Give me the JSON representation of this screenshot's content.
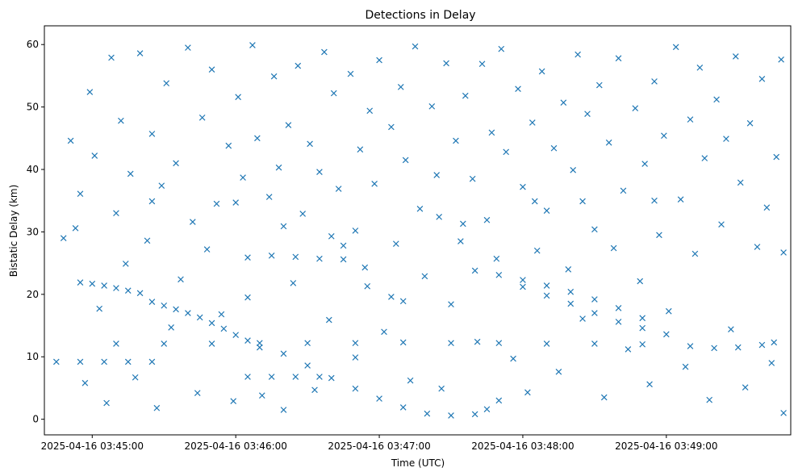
{
  "chart_data": {
    "type": "scatter",
    "title": "Detections in Delay",
    "xlabel": "Time (UTC)",
    "ylabel": "Bistatic Delay (km)",
    "x_unit": "UTC time",
    "xlim": [
      "2025-04-16 03:44:40",
      "2025-04-16 03:49:52"
    ],
    "ylim": [
      -2.5,
      63
    ],
    "x_ticks": [
      "2025-04-16 03:45:00",
      "2025-04-16 03:46:00",
      "2025-04-16 03:47:00",
      "2025-04-16 03:48:00",
      "2025-04-16 03:49:00"
    ],
    "y_ticks": [
      0,
      10,
      20,
      30,
      40,
      50,
      60
    ],
    "marker": "x",
    "color": "#1f77b4",
    "grid": false,
    "legend": "none",
    "series": [
      {
        "values": [
          [
            "03:44:55",
            21.9
          ],
          [
            "03:45:00",
            21.7
          ],
          [
            "03:45:05",
            21.4
          ],
          [
            "03:45:10",
            21.0
          ],
          [
            "03:45:15",
            20.6
          ],
          [
            "03:45:20",
            20.2
          ],
          [
            "03:45:25",
            18.8
          ],
          [
            "03:45:30",
            18.2
          ],
          [
            "03:45:35",
            17.6
          ],
          [
            "03:45:40",
            17.0
          ],
          [
            "03:45:45",
            16.3
          ],
          [
            "03:45:50",
            15.4
          ],
          [
            "03:45:55",
            14.5
          ],
          [
            "03:46:00",
            13.5
          ],
          [
            "03:46:05",
            12.6
          ],
          [
            "03:46:10",
            11.5
          ],
          [
            "03:45:10",
            12.1
          ],
          [
            "03:45:30",
            12.1
          ],
          [
            "03:45:50",
            12.1
          ],
          [
            "03:46:10",
            12.2
          ],
          [
            "03:46:30",
            12.2
          ],
          [
            "03:46:50",
            12.2
          ],
          [
            "03:47:10",
            12.3
          ],
          [
            "03:47:30",
            12.2
          ],
          [
            "03:47:50",
            12.2
          ],
          [
            "03:48:10",
            12.1
          ],
          [
            "03:48:30",
            12.1
          ],
          [
            "03:48:50",
            12.0
          ],
          [
            "03:49:10",
            11.7
          ],
          [
            "03:49:20",
            11.4
          ],
          [
            "03:44:45",
            9.2
          ],
          [
            "03:44:55",
            9.2
          ],
          [
            "03:45:05",
            9.2
          ],
          [
            "03:45:15",
            9.2
          ],
          [
            "03:45:25",
            9.2
          ],
          [
            "03:46:05",
            25.9
          ],
          [
            "03:46:15",
            26.2
          ],
          [
            "03:46:25",
            26.0
          ],
          [
            "03:46:35",
            25.7
          ],
          [
            "03:46:45",
            25.6
          ],
          [
            "03:46:05",
            6.8
          ],
          [
            "03:46:15",
            6.8
          ],
          [
            "03:46:25",
            6.8
          ],
          [
            "03:46:35",
            6.8
          ],
          [
            "03:46:20",
            10.5
          ],
          [
            "03:46:30",
            8.6
          ],
          [
            "03:46:40",
            6.6
          ],
          [
            "03:46:50",
            4.9
          ],
          [
            "03:47:00",
            3.3
          ],
          [
            "03:47:10",
            1.9
          ],
          [
            "03:47:20",
            0.9
          ],
          [
            "03:47:30",
            0.6
          ],
          [
            "03:47:40",
            0.8
          ],
          [
            "03:47:45",
            1.6
          ],
          [
            "03:47:50",
            3.0
          ],
          [
            "03:46:40",
            29.3
          ],
          [
            "03:46:50",
            30.2
          ],
          [
            "03:46:55",
            21.3
          ],
          [
            "03:47:05",
            19.6
          ],
          [
            "03:47:10",
            18.9
          ],
          [
            "03:47:25",
            32.4
          ],
          [
            "03:47:35",
            31.3
          ],
          [
            "03:47:40",
            23.8
          ],
          [
            "03:47:50",
            23.1
          ],
          [
            "03:48:00",
            22.3
          ],
          [
            "03:48:10",
            21.4
          ],
          [
            "03:48:20",
            20.4
          ],
          [
            "03:48:30",
            19.2
          ],
          [
            "03:48:40",
            17.8
          ],
          [
            "03:48:50",
            16.2
          ],
          [
            "03:48:00",
            21.2
          ],
          [
            "03:48:10",
            19.8
          ],
          [
            "03:48:20",
            18.5
          ],
          [
            "03:48:30",
            17.0
          ],
          [
            "03:48:40",
            15.6
          ],
          [
            "03:48:50",
            14.6
          ],
          [
            "03:49:00",
            13.6
          ],
          [
            "03:49:30",
            11.5
          ],
          [
            "03:49:40",
            11.9
          ],
          [
            "03:49:45",
            12.3
          ],
          [
            "03:48:05",
            34.9
          ],
          [
            "03:48:25",
            34.9
          ],
          [
            "03:48:55",
            35.0
          ],
          [
            "03:45:25",
            34.9
          ],
          [
            "03:46:00",
            34.7
          ],
          [
            "03:46:20",
            30.9
          ],
          [
            "03:44:48",
            29.0
          ],
          [
            "03:44:51",
            44.6
          ],
          [
            "03:44:53",
            30.6
          ],
          [
            "03:44:55",
            36.1
          ],
          [
            "03:44:57",
            5.8
          ],
          [
            "03:44:59",
            52.4
          ],
          [
            "03:45:01",
            42.2
          ],
          [
            "03:45:03",
            17.7
          ],
          [
            "03:45:06",
            2.6
          ],
          [
            "03:45:08",
            57.9
          ],
          [
            "03:45:10",
            33.0
          ],
          [
            "03:45:12",
            47.8
          ],
          [
            "03:45:14",
            24.9
          ],
          [
            "03:45:16",
            39.3
          ],
          [
            "03:45:18",
            6.7
          ],
          [
            "03:45:20",
            58.6
          ],
          [
            "03:45:23",
            28.6
          ],
          [
            "03:45:25",
            45.7
          ],
          [
            "03:45:27",
            1.8
          ],
          [
            "03:45:29",
            37.4
          ],
          [
            "03:45:31",
            53.8
          ],
          [
            "03:45:33",
            14.7
          ],
          [
            "03:45:35",
            41.0
          ],
          [
            "03:45:37",
            22.4
          ],
          [
            "03:45:40",
            59.5
          ],
          [
            "03:45:42",
            31.6
          ],
          [
            "03:45:44",
            4.2
          ],
          [
            "03:45:46",
            48.3
          ],
          [
            "03:45:48",
            27.2
          ],
          [
            "03:45:50",
            56.0
          ],
          [
            "03:45:52",
            34.5
          ],
          [
            "03:45:54",
            16.8
          ],
          [
            "03:45:57",
            43.8
          ],
          [
            "03:45:59",
            2.9
          ],
          [
            "03:46:01",
            51.6
          ],
          [
            "03:46:03",
            38.7
          ],
          [
            "03:46:05",
            19.5
          ],
          [
            "03:46:07",
            59.9
          ],
          [
            "03:46:09",
            45.0
          ],
          [
            "03:46:11",
            3.8
          ],
          [
            "03:46:14",
            35.6
          ],
          [
            "03:46:16",
            54.9
          ],
          [
            "03:46:18",
            40.3
          ],
          [
            "03:46:20",
            1.5
          ],
          [
            "03:46:22",
            47.1
          ],
          [
            "03:46:24",
            21.8
          ],
          [
            "03:46:26",
            56.6
          ],
          [
            "03:46:28",
            32.9
          ],
          [
            "03:46:31",
            44.1
          ],
          [
            "03:46:33",
            4.7
          ],
          [
            "03:46:35",
            39.6
          ],
          [
            "03:46:37",
            58.8
          ],
          [
            "03:46:39",
            15.9
          ],
          [
            "03:46:41",
            52.2
          ],
          [
            "03:46:43",
            36.9
          ],
          [
            "03:46:45",
            27.8
          ],
          [
            "03:46:48",
            55.3
          ],
          [
            "03:46:50",
            9.9
          ],
          [
            "03:46:52",
            43.2
          ],
          [
            "03:46:54",
            24.3
          ],
          [
            "03:46:56",
            49.4
          ],
          [
            "03:46:58",
            37.7
          ],
          [
            "03:47:00",
            57.5
          ],
          [
            "03:47:02",
            14.0
          ],
          [
            "03:47:05",
            46.8
          ],
          [
            "03:47:07",
            28.1
          ],
          [
            "03:47:09",
            53.2
          ],
          [
            "03:47:11",
            41.5
          ],
          [
            "03:47:13",
            6.2
          ],
          [
            "03:47:15",
            59.7
          ],
          [
            "03:47:17",
            33.7
          ],
          [
            "03:47:19",
            22.9
          ],
          [
            "03:47:22",
            50.1
          ],
          [
            "03:47:24",
            39.1
          ],
          [
            "03:47:26",
            4.9
          ],
          [
            "03:47:28",
            57.0
          ],
          [
            "03:47:30",
            18.4
          ],
          [
            "03:47:32",
            44.6
          ],
          [
            "03:47:34",
            28.5
          ],
          [
            "03:47:36",
            51.8
          ],
          [
            "03:47:39",
            38.5
          ],
          [
            "03:47:41",
            12.4
          ],
          [
            "03:47:43",
            56.9
          ],
          [
            "03:47:45",
            31.9
          ],
          [
            "03:47:47",
            45.9
          ],
          [
            "03:47:49",
            25.7
          ],
          [
            "03:47:51",
            59.3
          ],
          [
            "03:47:53",
            42.8
          ],
          [
            "03:47:56",
            9.7
          ],
          [
            "03:47:58",
            52.9
          ],
          [
            "03:48:00",
            37.2
          ],
          [
            "03:48:02",
            4.3
          ],
          [
            "03:48:04",
            47.5
          ],
          [
            "03:48:06",
            27.0
          ],
          [
            "03:48:08",
            55.7
          ],
          [
            "03:48:10",
            33.4
          ],
          [
            "03:48:13",
            43.4
          ],
          [
            "03:48:15",
            7.6
          ],
          [
            "03:48:17",
            50.7
          ],
          [
            "03:48:19",
            24.0
          ],
          [
            "03:48:21",
            39.9
          ],
          [
            "03:48:23",
            58.4
          ],
          [
            "03:48:25",
            16.1
          ],
          [
            "03:48:27",
            48.9
          ],
          [
            "03:48:30",
            30.4
          ],
          [
            "03:48:32",
            53.5
          ],
          [
            "03:48:34",
            3.5
          ],
          [
            "03:48:36",
            44.3
          ],
          [
            "03:48:38",
            27.4
          ],
          [
            "03:48:40",
            57.8
          ],
          [
            "03:48:42",
            36.6
          ],
          [
            "03:48:44",
            11.2
          ],
          [
            "03:48:47",
            49.8
          ],
          [
            "03:48:49",
            22.1
          ],
          [
            "03:48:51",
            40.9
          ],
          [
            "03:48:53",
            5.6
          ],
          [
            "03:48:55",
            54.1
          ],
          [
            "03:48:57",
            29.5
          ],
          [
            "03:48:59",
            45.4
          ],
          [
            "03:49:01",
            17.3
          ],
          [
            "03:49:04",
            59.6
          ],
          [
            "03:49:06",
            35.2
          ],
          [
            "03:49:08",
            8.4
          ],
          [
            "03:49:10",
            48.0
          ],
          [
            "03:49:12",
            26.5
          ],
          [
            "03:49:14",
            56.3
          ],
          [
            "03:49:16",
            41.8
          ],
          [
            "03:49:18",
            3.1
          ],
          [
            "03:49:21",
            51.2
          ],
          [
            "03:49:23",
            31.2
          ],
          [
            "03:49:25",
            44.9
          ],
          [
            "03:49:27",
            14.4
          ],
          [
            "03:49:29",
            58.1
          ],
          [
            "03:49:31",
            37.9
          ],
          [
            "03:49:33",
            5.1
          ],
          [
            "03:49:35",
            47.4
          ],
          [
            "03:49:38",
            27.6
          ],
          [
            "03:49:40",
            54.5
          ],
          [
            "03:49:42",
            33.9
          ],
          [
            "03:49:44",
            9.0
          ],
          [
            "03:49:46",
            42.0
          ],
          [
            "03:49:48",
            57.6
          ],
          [
            "03:49:49",
            26.7
          ],
          [
            "03:49:49",
            1.0
          ]
        ]
      }
    ]
  }
}
